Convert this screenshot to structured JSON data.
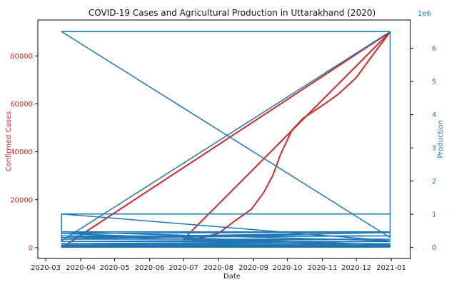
{
  "chart_data": {
    "type": "line",
    "title": "COVID-19 Cases and Agricultural Production in Uttarakhand (2020)",
    "xlabel": "Date",
    "ylabel_left": "Confirmed Cases",
    "ylabel_right": "Production",
    "right_axis_offset_label": "1e6",
    "x_tick_labels": [
      "2020-03",
      "2020-04",
      "2020-05",
      "2020-06",
      "2020-07",
      "2020-08",
      "2020-09",
      "2020-10",
      "2020-11",
      "2020-12",
      "2021-01"
    ],
    "y_left_ticks": [
      0,
      20000,
      40000,
      60000,
      80000
    ],
    "y_left_ylim": [
      -4500,
      95000
    ],
    "y_right_ticks": [
      0,
      1,
      2,
      3,
      4,
      5,
      6
    ],
    "y_right_ylim": [
      -0.33,
      6.85
    ],
    "x_range": [
      "2020-02-23",
      "2021-01-18"
    ],
    "colors": {
      "left_axis": "#d62728",
      "right_axis": "#1f77b4",
      "cases_series": "#d62728",
      "production_series": "#1f77b4"
    },
    "series": [
      {
        "name": "",
        "axis": "left",
        "color": "#d62728",
        "points": [
          [
            "2020-03-15",
            0
          ],
          [
            "2020-12-31",
            90000
          ],
          [
            "2020-07-01",
            3500
          ],
          [
            "2020-07-15",
            3900
          ],
          [
            "2020-08-01",
            6000
          ],
          [
            "2020-08-15",
            11000
          ],
          [
            "2020-08-30",
            16000
          ],
          [
            "2020-09-10",
            23000
          ],
          [
            "2020-09-18",
            30000
          ],
          [
            "2020-09-25",
            39000
          ],
          [
            "2020-10-05",
            49000
          ],
          [
            "2020-10-15",
            54000
          ],
          [
            "2020-10-31",
            59000
          ],
          [
            "2020-11-15",
            64000
          ],
          [
            "2020-12-01",
            71000
          ],
          [
            "2020-12-15",
            80000
          ],
          [
            "2020-12-31",
            90000
          ]
        ]
      },
      {
        "name": "",
        "axis": "right",
        "color": "#1f77b4",
        "points": [
          [
            "2020-03-15",
            6.5
          ],
          [
            "2020-12-31",
            6.5
          ],
          [
            "2020-12-31",
            0.3
          ],
          [
            "2020-03-15",
            6.5
          ],
          [
            "2020-12-31",
            6.5
          ],
          [
            "2020-03-15",
            0.2
          ],
          [
            "2020-03-15",
            1.01
          ],
          [
            "2020-12-31",
            1.01
          ],
          [
            "2020-03-15",
            1.01
          ],
          [
            "2020-12-31",
            0.2
          ],
          [
            "2020-03-15",
            0.47
          ],
          [
            "2020-12-31",
            0.47
          ],
          [
            "2020-03-15",
            0.42
          ],
          [
            "2020-12-31",
            0.08
          ],
          [
            "2020-03-15",
            0.35
          ],
          [
            "2020-12-31",
            0.35
          ],
          [
            "2020-03-15",
            0.3
          ],
          [
            "2020-12-31",
            0.45
          ],
          [
            "2020-03-15",
            0.25
          ],
          [
            "2020-12-31",
            0.25
          ],
          [
            "2020-03-15",
            0.18
          ],
          [
            "2020-12-31",
            0.18
          ],
          [
            "2020-03-15",
            0.12
          ],
          [
            "2020-12-31",
            0.12
          ],
          [
            "2020-03-15",
            0.08
          ],
          [
            "2020-12-31",
            0.08
          ],
          [
            "2020-03-15",
            0.05
          ],
          [
            "2020-12-31",
            0.05
          ],
          [
            "2020-03-15",
            0.03
          ],
          [
            "2020-12-31",
            0.03
          ],
          [
            "2020-03-15",
            0.01
          ],
          [
            "2020-12-31",
            0.01
          ]
        ]
      }
    ]
  }
}
